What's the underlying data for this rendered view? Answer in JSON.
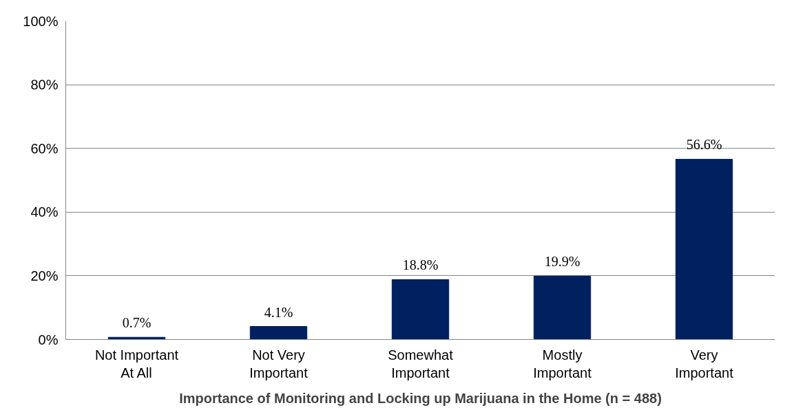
{
  "chart_data": {
    "type": "bar",
    "xlabel": "Importance of Monitoring and Locking up Marijuana in the Home (n = 488)",
    "categories": [
      "Not Important\nAt All",
      "Not Very\nImportant",
      "Somewhat\nImportant",
      "Mostly\nImportant",
      "Very\nImportant"
    ],
    "values": [
      0.7,
      4.1,
      18.8,
      19.9,
      56.6
    ],
    "value_labels": [
      "0.7%",
      "4.1%",
      "18.8%",
      "19.9%",
      "56.6%"
    ],
    "color": "#002060",
    "ylim": [
      0,
      100
    ],
    "yticks": [
      {
        "value": 0,
        "label": "0%"
      },
      {
        "value": 20,
        "label": "20%"
      },
      {
        "value": 40,
        "label": "40%"
      },
      {
        "value": 60,
        "label": "60%"
      },
      {
        "value": 80,
        "label": "80%"
      },
      {
        "value": 100,
        "label": "100%"
      }
    ],
    "grid": "y"
  }
}
